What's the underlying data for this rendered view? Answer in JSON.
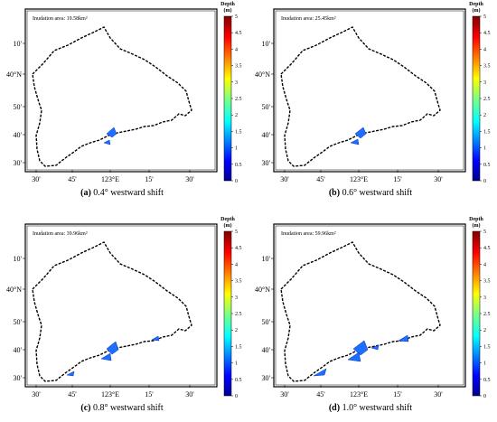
{
  "panels": [
    {
      "label": "(a)",
      "caption": "0.4° westward shift",
      "annotation": "Inudation area: 19.58km²"
    },
    {
      "label": "(b)",
      "caption": "0.6° westward shift",
      "annotation": "Inudation area: 25.45km²"
    },
    {
      "label": "(c)",
      "caption": "0.8° westward shift",
      "annotation": "Inudation area: 39.96km²"
    },
    {
      "label": "(d)",
      "caption": "1.0° westward shift",
      "annotation": "Inudation area: 59.96km²"
    }
  ],
  "x_labels": [
    "30'",
    "45'",
    "123°E",
    "15'",
    "30'"
  ],
  "y_labels": [
    "10'",
    "40°N",
    "50'",
    "40'",
    "30'"
  ],
  "colorbar": {
    "title": "Depth",
    "unit": "(m)",
    "clim": [
      0,
      5
    ],
    "ticks": [
      0,
      0.5,
      1,
      1.5,
      2,
      2.5,
      3,
      3.5,
      4,
      4.5,
      5
    ]
  }
}
